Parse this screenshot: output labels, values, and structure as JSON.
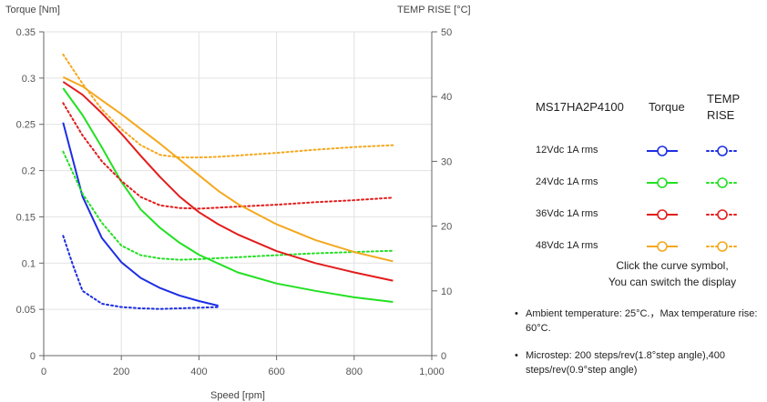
{
  "chart_data": {
    "type": "line",
    "left_axis": {
      "label": "Torque  [Nm]",
      "min": 0,
      "max": 0.35,
      "ticks": [
        0,
        0.05,
        0.1,
        0.15,
        0.2,
        0.25,
        0.3,
        0.35
      ],
      "tick_labels": [
        "0",
        "0.05",
        "0.1",
        "0.15",
        "0.2",
        "0.25",
        "0.3",
        "0.35"
      ]
    },
    "right_axis": {
      "label": "TEMP RISE [°C]",
      "min": 0,
      "max": 50,
      "ticks": [
        0,
        10,
        20,
        30,
        40,
        50
      ],
      "tick_labels": [
        "0",
        "10",
        "20",
        "30",
        "40",
        "50"
      ]
    },
    "x_axis": {
      "label": "Speed [rpm]",
      "min": 0,
      "max": 1000,
      "ticks": [
        0,
        200,
        400,
        600,
        800,
        1000
      ],
      "tick_labels": [
        "0",
        "200",
        "400",
        "600",
        "800",
        "1,000"
      ]
    },
    "grid": "horizontal and vertical",
    "series": [
      {
        "name": "12Vdc  1A rms",
        "color": "#1c2ee3",
        "torque": {
          "x": [
            50,
            100,
            150,
            200,
            250,
            300,
            350,
            400,
            450
          ],
          "y": [
            0.252,
            0.172,
            0.127,
            0.101,
            0.084,
            0.073,
            0.065,
            0.059,
            0.054
          ]
        },
        "temp": {
          "x": [
            50,
            75,
            100,
            150,
            200,
            250,
            300,
            350,
            400,
            450
          ],
          "y": [
            18.5,
            14.0,
            10.0,
            8.0,
            7.5,
            7.3,
            7.2,
            7.3,
            7.4,
            7.5
          ]
        }
      },
      {
        "name": "24Vdc  1A rms",
        "color": "#22e022",
        "torque": {
          "x": [
            50,
            100,
            150,
            200,
            250,
            300,
            350,
            400,
            500,
            600,
            700,
            800,
            900
          ],
          "y": [
            0.289,
            0.26,
            0.225,
            0.188,
            0.158,
            0.138,
            0.122,
            0.109,
            0.09,
            0.078,
            0.07,
            0.063,
            0.058
          ]
        },
        "temp": {
          "x": [
            50,
            100,
            150,
            200,
            250,
            300,
            350,
            400,
            500,
            600,
            700,
            800,
            900
          ],
          "y": [
            31.5,
            25.0,
            20.5,
            17.0,
            15.5,
            15.0,
            14.8,
            14.9,
            15.2,
            15.5,
            15.8,
            16.0,
            16.2
          ]
        }
      },
      {
        "name": "36Vdc  1A rms",
        "color": "#e31c1c",
        "torque": {
          "x": [
            50,
            100,
            150,
            200,
            250,
            300,
            350,
            400,
            450,
            500,
            600,
            700,
            800,
            900
          ],
          "y": [
            0.296,
            0.282,
            0.262,
            0.24,
            0.216,
            0.193,
            0.172,
            0.155,
            0.142,
            0.131,
            0.113,
            0.1,
            0.09,
            0.081
          ]
        },
        "temp": {
          "x": [
            50,
            100,
            150,
            200,
            250,
            300,
            350,
            400,
            500,
            600,
            700,
            800,
            900
          ],
          "y": [
            39.0,
            34.0,
            30.0,
            27.0,
            24.5,
            23.2,
            22.8,
            22.7,
            23.0,
            23.3,
            23.7,
            24.0,
            24.4
          ]
        }
      },
      {
        "name": "48Vdc  1A rms",
        "color": "#f4a81d",
        "torque": {
          "x": [
            50,
            100,
            150,
            200,
            250,
            300,
            350,
            400,
            450,
            500,
            600,
            700,
            800,
            900
          ],
          "y": [
            0.301,
            0.291,
            0.276,
            0.261,
            0.245,
            0.229,
            0.212,
            0.195,
            0.178,
            0.164,
            0.142,
            0.125,
            0.112,
            0.102
          ]
        },
        "temp": {
          "x": [
            50,
            100,
            150,
            200,
            250,
            300,
            350,
            400,
            450,
            500,
            600,
            700,
            800,
            900
          ],
          "y": [
            46.5,
            42.0,
            38.0,
            35.0,
            32.5,
            31.0,
            30.6,
            30.6,
            30.7,
            30.9,
            31.3,
            31.8,
            32.2,
            32.5
          ]
        }
      }
    ]
  },
  "legend": {
    "model": "MS17HA2P4100",
    "torque_header": "Torque",
    "temp_header_line1": "TEMP",
    "temp_header_line2": "RISE"
  },
  "hint": {
    "line1": "Click the curve symbol,",
    "line2": "You can switch the display"
  },
  "notes": [
    "Ambient temperature: 25°C.，Max temperature rise: 60°C.",
    "Microstep: 200 steps/rev(1.8°step angle),400 steps/rev(0.9°step angle)"
  ]
}
